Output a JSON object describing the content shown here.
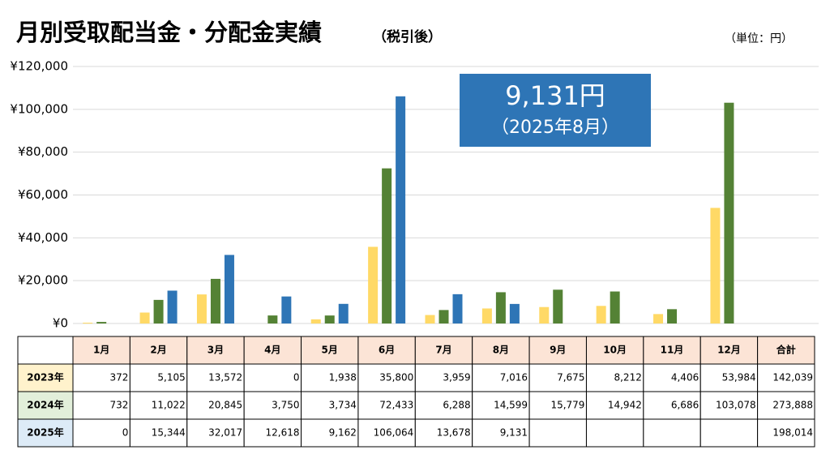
{
  "chart_data": {
    "type": "bar",
    "title": "月別受取配当金・分配金実績",
    "subtitle": "（税引後）",
    "unit": "（単位：円）",
    "annotation": {
      "value": "9,131円",
      "period": "（2025年8月）"
    },
    "categories": [
      "1月",
      "2月",
      "3月",
      "4月",
      "5月",
      "6月",
      "7月",
      "8月",
      "9月",
      "10月",
      "11月",
      "12月"
    ],
    "total_header": "合計",
    "series": [
      {
        "name": "2023年",
        "color": "#ffd966",
        "row_color": "#fff2cc",
        "values": [
          372,
          5105,
          13572,
          0,
          1938,
          35800,
          3959,
          7016,
          7675,
          8212,
          4406,
          53984
        ],
        "value_labels": [
          "372",
          "5,105",
          "13,572",
          "0",
          "1,938",
          "35,800",
          "3,959",
          "7,016",
          "7,675",
          "8,212",
          "4,406",
          "53,984"
        ],
        "total": "142,039"
      },
      {
        "name": "2024年",
        "color": "#548235",
        "row_color": "#e2efda",
        "values": [
          732,
          11022,
          20845,
          3750,
          3734,
          72433,
          6288,
          14599,
          15779,
          14942,
          6686,
          103078
        ],
        "value_labels": [
          "732",
          "11,022",
          "20,845",
          "3,750",
          "3,734",
          "72,433",
          "6,288",
          "14,599",
          "15,779",
          "14,942",
          "6,686",
          "103,078"
        ],
        "total": "273,888"
      },
      {
        "name": "2025年",
        "color": "#2e75b6",
        "row_color": "#ddebf7",
        "values": [
          0,
          15344,
          32017,
          12618,
          9162,
          106064,
          13678,
          9131,
          null,
          null,
          null,
          null
        ],
        "value_labels": [
          "0",
          "15,344",
          "32,017",
          "12,618",
          "9,162",
          "106,064",
          "13,678",
          "9,131",
          null,
          null,
          null,
          null
        ],
        "total": "198,014"
      }
    ],
    "ylim": [
      0,
      120000
    ],
    "yticks": [
      {
        "value": 0,
        "label": "¥0"
      },
      {
        "value": 20000,
        "label": "¥20,000"
      },
      {
        "value": 40000,
        "label": "¥40,000"
      },
      {
        "value": 60000,
        "label": "¥60,000"
      },
      {
        "value": 80000,
        "label": "¥80,000"
      },
      {
        "value": 100000,
        "label": "¥100,000"
      },
      {
        "value": 120000,
        "label": "¥120,000"
      }
    ],
    "grid": true
  }
}
